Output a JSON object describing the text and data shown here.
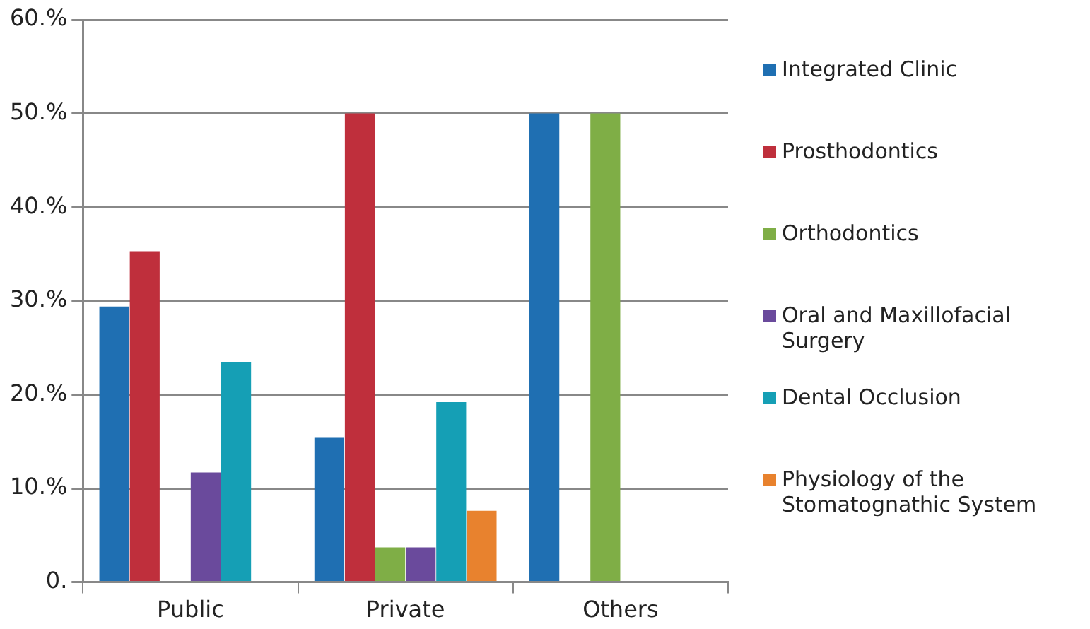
{
  "chart_data": {
    "type": "bar",
    "categories": [
      "Public",
      "Private",
      "Others"
    ],
    "series": [
      {
        "name": "Integrated Clinic",
        "color": "#1f6fb2",
        "values": [
          29.4,
          15.4,
          50
        ]
      },
      {
        "name": "Prosthodontics",
        "color": "#bf2f3c",
        "values": [
          35.3,
          50,
          0
        ]
      },
      {
        "name": "Orthodontics",
        "color": "#7fae46",
        "values": [
          0,
          3.7,
          50
        ]
      },
      {
        "name": "Oral and Maxillofacial Surgery",
        "color": "#6a4a9c",
        "values": [
          11.7,
          3.7,
          0
        ]
      },
      {
        "name": "Dental Occlusion",
        "color": "#159fb5",
        "values": [
          23.5,
          19.2,
          0
        ]
      },
      {
        "name": "Physiology of the Stomatognathic System",
        "color": "#e8822e",
        "values": [
          0,
          7.6,
          0
        ]
      }
    ],
    "ylim": [
      0,
      60
    ],
    "yticks": [
      {
        "value": 0,
        "label": "0."
      },
      {
        "value": 10,
        "label": "10.%"
      },
      {
        "value": 20,
        "label": "20.%"
      },
      {
        "value": 30,
        "label": "30.%"
      },
      {
        "value": 40,
        "label": "40.%"
      },
      {
        "value": 50,
        "label": "50.%"
      },
      {
        "value": 60,
        "label": "60.%"
      }
    ],
    "grid": "y",
    "legend": "right"
  }
}
